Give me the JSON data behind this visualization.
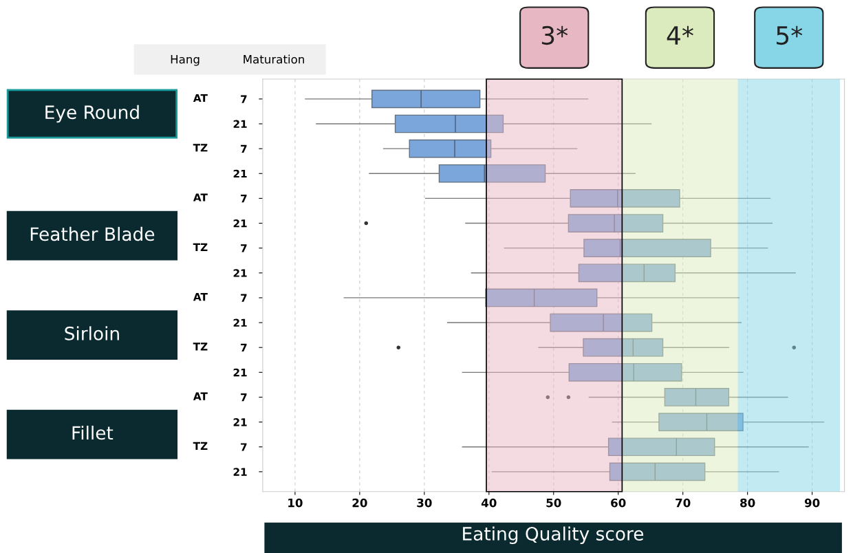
{
  "chart_data": {
    "type": "box",
    "orientation": "horizontal",
    "xlabel": "Eating Quality score",
    "categories": [
      "7",
      "21",
      "7",
      "21",
      "7",
      "21",
      "7",
      "21",
      "7",
      "21",
      "7",
      "21",
      "7",
      "21",
      "7",
      "21"
    ],
    "color": "#7aa6dc",
    "boxes": [
      {
        "low": 11.6,
        "q1": 21.9,
        "median": 29.5,
        "q3": 38.6,
        "high": 55.3
      },
      {
        "low": 13.3,
        "q1": 25.5,
        "median": 34.8,
        "q3": 42.2,
        "high": 65.1
      },
      {
        "low": 23.7,
        "q1": 27.7,
        "median": 34.7,
        "q3": 40.3,
        "high": 53.6
      },
      {
        "low": 21.5,
        "q1": 32.3,
        "median": 39.3,
        "q3": 48.7,
        "high": 62.6
      },
      {
        "low": 30.2,
        "q1": 52.6,
        "median": 59.9,
        "q3": 69.5,
        "high": 83.5
      },
      {
        "low": 36.4,
        "q1": 52.3,
        "median": 59.4,
        "q3": 66.9,
        "high": 83.8,
        "outliers": [
          21.0
        ]
      },
      {
        "low": 42.4,
        "q1": 54.7,
        "median": 60.3,
        "q3": 74.3,
        "high": 83.1
      },
      {
        "low": 37.3,
        "q1": 53.9,
        "median": 64.0,
        "q3": 68.8,
        "high": 87.4
      },
      {
        "low": 17.6,
        "q1": 39.5,
        "median": 47.0,
        "q3": 56.7,
        "high": 78.7
      },
      {
        "low": 33.6,
        "q1": 49.5,
        "median": 57.7,
        "q3": 65.2,
        "high": 79.0
      },
      {
        "low": 47.7,
        "q1": 54.6,
        "median": 62.3,
        "q3": 66.9,
        "high": 77.1,
        "outliers": [
          26.0,
          87.2
        ]
      },
      {
        "low": 35.9,
        "q1": 52.4,
        "median": 62.4,
        "q3": 69.8,
        "high": 79.3
      },
      {
        "low": 55.5,
        "q1": 67.2,
        "median": 72.0,
        "q3": 77.1,
        "high": 86.2,
        "outliers": [
          49.1,
          52.3
        ]
      },
      {
        "low": 59.1,
        "q1": 66.3,
        "median": 73.7,
        "q3": 79.3,
        "high": 91.8
      },
      {
        "low": 35.9,
        "q1": 58.5,
        "median": 69.0,
        "q3": 74.9,
        "high": 89.4
      },
      {
        "low": 40.5,
        "q1": 58.7,
        "median": 65.7,
        "q3": 73.4,
        "high": 84.8
      }
    ],
    "xlim": [
      5,
      95
    ],
    "xticks": [
      10,
      20,
      30,
      40,
      50,
      60,
      70,
      80,
      90
    ],
    "grid": "x",
    "bands": [
      {
        "axis": "x",
        "from": 39.6,
        "to": 60.6,
        "label": "3*",
        "color": "#e7b7c4"
      },
      {
        "axis": "x",
        "from": 60.6,
        "to": 78.5,
        "label": "4*",
        "color": "#dcebbd"
      },
      {
        "axis": "x",
        "from": 78.5,
        "to": 94.3,
        "label": "5*",
        "color": "#86d6e8"
      }
    ],
    "annotations": [
      "Hang",
      "Maturation",
      "Eye Round",
      "Feather Blade",
      "Sirloin",
      "Fillet",
      "AT",
      "TZ",
      "AT",
      "TZ",
      "AT",
      "TZ",
      "AT",
      "TZ"
    ]
  }
}
